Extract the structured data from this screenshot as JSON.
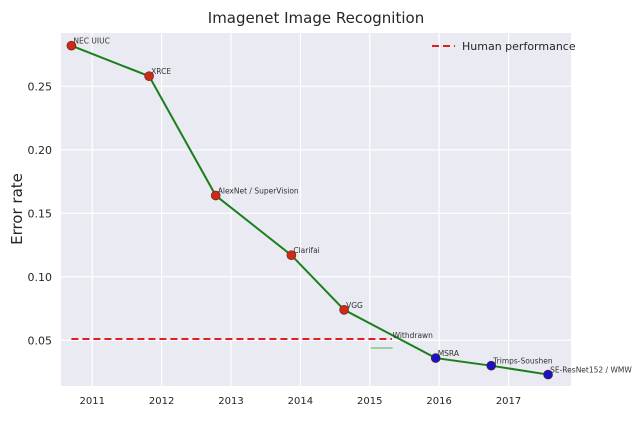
{
  "chart_data": {
    "type": "line",
    "title": "Imagenet Image Recognition",
    "xlabel": "",
    "ylabel": "Error rate",
    "xlim": [
      2010.55,
      2017.9
    ],
    "ylim": [
      0.014,
      0.292
    ],
    "x_ticks": [
      "2011",
      "2012",
      "2013",
      "2014",
      "2015",
      "2016",
      "2017"
    ],
    "y_ticks": [
      "0.05",
      "0.10",
      "0.15",
      "0.20",
      "0.25"
    ],
    "grid": true,
    "legend_position": "top-right",
    "points": [
      {
        "label": "NEC UIUC",
        "x": 2010.7,
        "y": 0.282,
        "color": "#cc2b1a"
      },
      {
        "label": "XRCE",
        "x": 2011.82,
        "y": 0.258,
        "color": "#cc2b1a"
      },
      {
        "label": "AlexNet / SuperVision",
        "x": 2012.78,
        "y": 0.164,
        "color": "#cc2b1a"
      },
      {
        "label": "Clarifai",
        "x": 2013.87,
        "y": 0.117,
        "color": "#cc2b1a"
      },
      {
        "label": "VGG",
        "x": 2014.63,
        "y": 0.074,
        "color": "#cc2b1a"
      },
      {
        "label": "MSRA",
        "x": 2015.95,
        "y": 0.036,
        "color": "#1515c8"
      },
      {
        "label": "Trimps-Soushen",
        "x": 2016.75,
        "y": 0.03,
        "color": "#1515c8"
      },
      {
        "label": "SE-ResNet152 / WMW",
        "x": 2017.57,
        "y": 0.023,
        "color": "#1515c8"
      }
    ],
    "annotations": [
      {
        "label": "Withdrawn",
        "x": 2015.3,
        "y": 0.051
      }
    ],
    "line_color": "#1a7f1a",
    "human_performance": {
      "name": "Human performance",
      "y": 0.051,
      "x_start": 2010.7,
      "x_end": 2015.32,
      "color": "#e02020"
    }
  }
}
